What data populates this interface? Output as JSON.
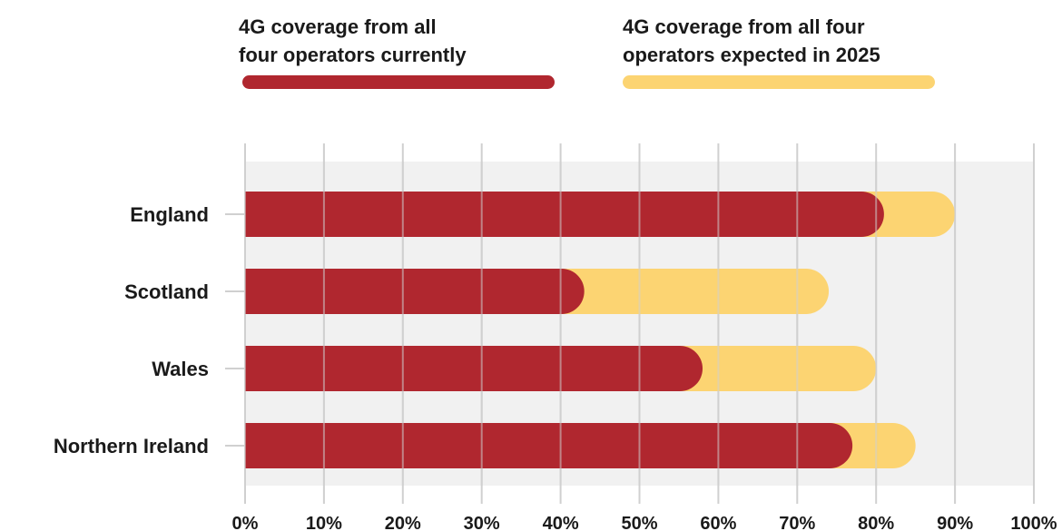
{
  "chart_data": {
    "type": "bar",
    "orientation": "horizontal",
    "layout": "overlapping",
    "categories": [
      "England",
      "Scotland",
      "Wales",
      "Northern Ireland"
    ],
    "series": [
      {
        "name": "4G coverage from all\nfour operators currently",
        "values": [
          81,
          43,
          58,
          77
        ],
        "color": "#b0272f"
      },
      {
        "name": "4G coverage from all four\noperators expected in 2025",
        "values": [
          90,
          74,
          80,
          85
        ],
        "color": "#fcd472"
      }
    ],
    "xlim": [
      0,
      100
    ],
    "ticks": [
      0,
      10,
      20,
      30,
      40,
      50,
      60,
      70,
      80,
      90,
      100
    ],
    "tick_labels": [
      "0%",
      "10%",
      "20%",
      "30%",
      "40%",
      "50%",
      "60%",
      "70%",
      "80%",
      "90%",
      "100%"
    ],
    "grid": "vertical",
    "legend": "top"
  },
  "colors": {
    "plot_background": "#f1f1f1",
    "gridline": "#d0d0d0",
    "current": "#b0272f",
    "expected": "#fcd472"
  }
}
